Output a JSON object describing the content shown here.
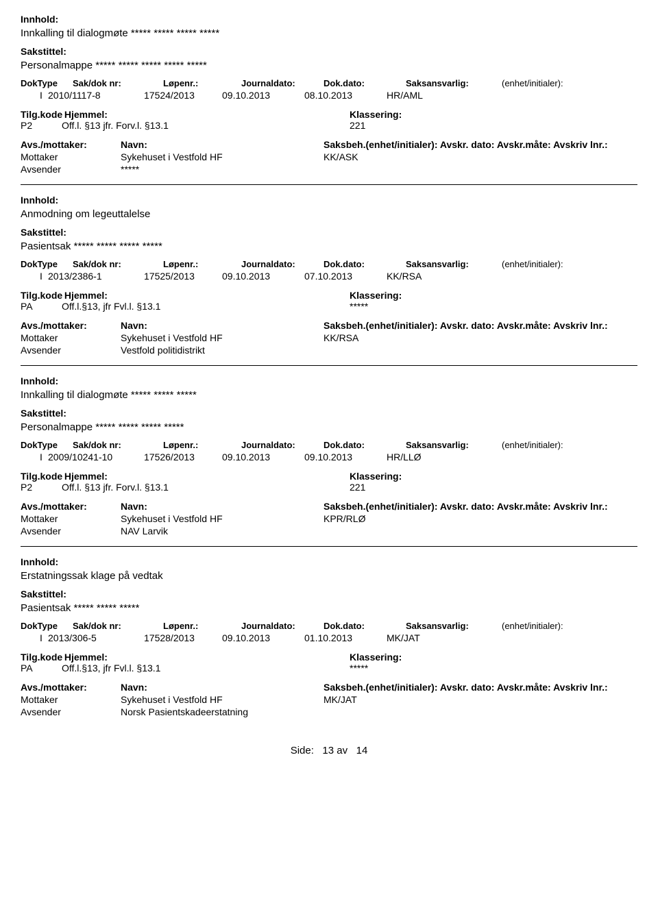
{
  "labels": {
    "innhold": "Innhold:",
    "sakstittel": "Sakstittel:",
    "doktype": "DokType",
    "sakdok": "Sak/dok nr:",
    "lopenr": "Løpenr.:",
    "journaldato": "Journaldato:",
    "dokdato": "Dok.dato:",
    "saksansvarlig": "Saksansvarlig:",
    "enhet": "(enhet/initialer):",
    "tilgkode": "Tilg.kode",
    "hjemmel": "Hjemmel:",
    "klassering": "Klassering:",
    "avsmottaker": "Avs./mottaker:",
    "navn": "Navn:",
    "saksbeh_long": "Saksbeh.(enhet/initialer): Avskr. dato:  Avskr.måte:  Avskriv lnr.:",
    "mottaker": "Mottaker",
    "avsender": "Avsender"
  },
  "records": [
    {
      "innhold": "Innkalling til dialogmøte ***** ***** ***** *****",
      "sakstittel": "Personalmappe ***** ***** ***** ***** *****",
      "doktype": "I",
      "sakdok": "2010/1117-8",
      "lopenr": "17524/2013",
      "journaldato": "09.10.2013",
      "dokdato": "08.10.2013",
      "saksansvarlig": "HR/AML",
      "tilgkode": "P2",
      "hjemmel": "Off.l. §13  jfr.  Forv.l. §13.1",
      "klassering": "221",
      "mottaker_navn": "Sykehuset i Vestfold HF",
      "saksbeh": "KK/ASK",
      "avsender_navn": "*****"
    },
    {
      "innhold": "Anmodning om legeuttalelse",
      "sakstittel": "Pasientsak ***** ***** ***** *****",
      "doktype": "I",
      "sakdok": "2013/2386-1",
      "lopenr": "17525/2013",
      "journaldato": "09.10.2013",
      "dokdato": "07.10.2013",
      "saksansvarlig": "KK/RSA",
      "tilgkode": "PA",
      "hjemmel": "Off.l.§13, jfr Fvl.l. §13.1",
      "klassering": "*****",
      "mottaker_navn": "Sykehuset i Vestfold HF",
      "saksbeh": "KK/RSA",
      "avsender_navn": "Vestfold politidistrikt"
    },
    {
      "innhold": "Innkalling til dialogmøte ***** ***** *****",
      "sakstittel": "Personalmappe ***** ***** ***** *****",
      "doktype": "I",
      "sakdok": "2009/10241-10",
      "lopenr": "17526/2013",
      "journaldato": "09.10.2013",
      "dokdato": "09.10.2013",
      "saksansvarlig": "HR/LLØ",
      "tilgkode": "P2",
      "hjemmel": "Off.l. §13  jfr.  Forv.l. §13.1",
      "klassering": "221",
      "mottaker_navn": "Sykehuset i Vestfold HF",
      "saksbeh": "KPR/RLØ",
      "avsender_navn": "NAV Larvik"
    },
    {
      "innhold": "Erstatningssak klage på vedtak",
      "sakstittel": "Pasientsak ***** ***** *****",
      "doktype": "I",
      "sakdok": "2013/306-5",
      "lopenr": "17528/2013",
      "journaldato": "09.10.2013",
      "dokdato": "01.10.2013",
      "saksansvarlig": "MK/JAT",
      "tilgkode": "PA",
      "hjemmel": "Off.l.§13, jfr Fvl.l. §13.1",
      "klassering": "*****",
      "mottaker_navn": "Sykehuset i Vestfold HF",
      "saksbeh": "MK/JAT",
      "avsender_navn": "Norsk Pasientskadeerstatning"
    }
  ],
  "footer": {
    "side": "Side:",
    "page": "13",
    "av": "av",
    "total": "14"
  }
}
